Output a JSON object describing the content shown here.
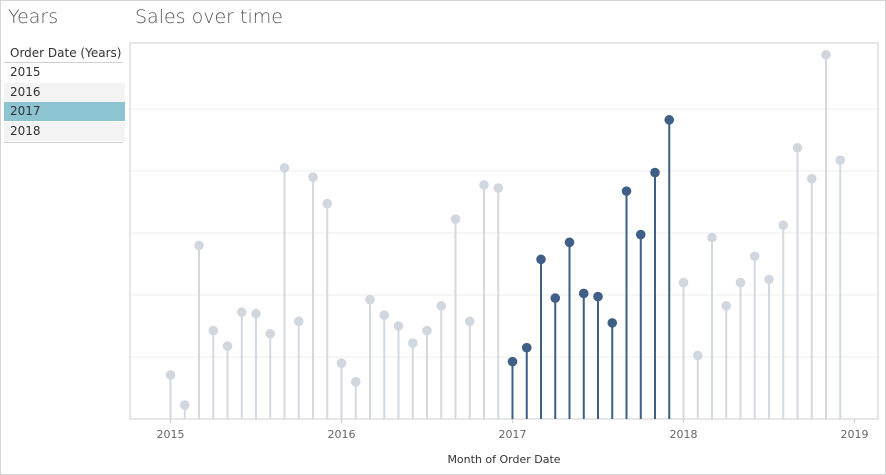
{
  "left_panel": {
    "title": "Years",
    "filter_header": "Order Date (Years)",
    "items": [
      {
        "label": "2015",
        "selected": false
      },
      {
        "label": "2016",
        "selected": false
      },
      {
        "label": "2017",
        "selected": true
      },
      {
        "label": "2018",
        "selected": false
      }
    ]
  },
  "colors": {
    "highlight": "#3f5f86",
    "muted_dot": "#d0d7de",
    "muted_stem": "#d2dae0",
    "selected_filter_bg": "#8cc4d2",
    "gridline": "#ececec"
  },
  "chart_data": {
    "type": "lollipop",
    "title": "Sales over time",
    "xlabel": "Month of Order Date",
    "ylabel": "",
    "x_ticks": [
      "2015",
      "2016",
      "2017",
      "2018",
      "2019"
    ],
    "y_tick_labels_visible": false,
    "ylim": [
      0,
      120000
    ],
    "y_gridlines": [
      20000,
      40000,
      60000,
      80000,
      100000
    ],
    "grid": true,
    "highlighted_year": "2017",
    "x": [
      "2015-01",
      "2015-02",
      "2015-03",
      "2015-04",
      "2015-05",
      "2015-06",
      "2015-07",
      "2015-08",
      "2015-09",
      "2015-10",
      "2015-11",
      "2015-12",
      "2016-01",
      "2016-02",
      "2016-03",
      "2016-04",
      "2016-05",
      "2016-06",
      "2016-07",
      "2016-08",
      "2016-09",
      "2016-10",
      "2016-11",
      "2016-12",
      "2017-01",
      "2017-02",
      "2017-03",
      "2017-04",
      "2017-05",
      "2017-06",
      "2017-07",
      "2017-08",
      "2017-09",
      "2017-10",
      "2017-11",
      "2017-12",
      "2018-01",
      "2018-02",
      "2018-03",
      "2018-04",
      "2018-05",
      "2018-06",
      "2018-07",
      "2018-08",
      "2018-09",
      "2018-10",
      "2018-11",
      "2018-12"
    ],
    "values": [
      14200,
      4500,
      56000,
      28500,
      23500,
      34500,
      34000,
      27500,
      81000,
      31500,
      78000,
      69500,
      18000,
      12000,
      38500,
      33500,
      30000,
      24500,
      28500,
      36500,
      64500,
      31500,
      75500,
      74500,
      18500,
      23000,
      51500,
      39000,
      57000,
      40500,
      39500,
      31000,
      73500,
      59500,
      79500,
      96500,
      44000,
      20500,
      58500,
      36500,
      44000,
      52500,
      45000,
      62500,
      87500,
      77500,
      117500,
      83500
    ]
  }
}
